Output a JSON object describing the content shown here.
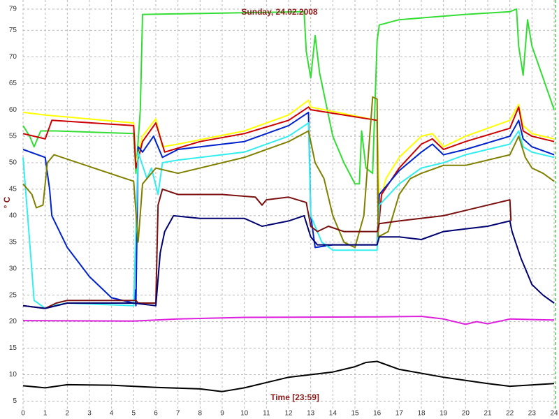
{
  "chart_data": {
    "type": "line",
    "title": "Sunday, 24.02.2008",
    "x_label": "Time [23:59]",
    "y_label": "° C",
    "xlim": [
      0,
      24
    ],
    "ylim": [
      3.6,
      79
    ],
    "xticks": [
      0,
      1,
      2,
      3,
      4,
      5,
      6,
      7,
      8,
      9,
      10,
      11,
      12,
      13,
      14,
      15,
      16,
      17,
      18,
      19,
      20,
      21,
      22,
      23,
      24
    ],
    "yticks": [
      5,
      10,
      15,
      20,
      25,
      30,
      35,
      40,
      45,
      50,
      55,
      60,
      65,
      70,
      75,
      79
    ],
    "grid": true,
    "series": [
      {
        "color": "#33dd33",
        "x": [
          0,
          0.3,
          0.5,
          0.8,
          1.5,
          5.0,
          5.1,
          5.3,
          5.4,
          5.5,
          12.7,
          12.8,
          13.0,
          13.2,
          13.4,
          14,
          14.5,
          15.0,
          15.2,
          15.3,
          15.5,
          15.8,
          16.0,
          16.1,
          17,
          20,
          22,
          22.3,
          22.4,
          22.6,
          22.8,
          23.0,
          23.5,
          24
        ],
        "values": [
          57,
          55,
          53,
          56,
          56,
          55.5,
          48,
          60,
          78,
          78,
          78.5,
          71,
          66,
          74,
          67,
          55,
          50,
          46,
          46,
          56,
          49,
          48,
          73,
          76,
          77,
          78,
          78.5,
          79,
          72,
          66.5,
          77,
          72,
          66,
          60
        ]
      },
      {
        "color": "#ffff00",
        "x": [
          0,
          1,
          5,
          5.1,
          5.4,
          6.0,
          6.3,
          7,
          10,
          12,
          12.9,
          13.0,
          16,
          16.1,
          16.4,
          17,
          18,
          18.5,
          19,
          20,
          22,
          22.4,
          22.6,
          23,
          24
        ],
        "values": [
          59.5,
          59,
          57.5,
          50,
          55,
          58.3,
          53,
          53.5,
          56,
          59,
          61.8,
          60.5,
          58,
          42,
          47,
          51,
          55,
          55.5,
          53,
          55,
          58,
          61,
          57,
          55.5,
          54.5
        ]
      },
      {
        "color": "#cc0000",
        "x": [
          0,
          1,
          1.3,
          5,
          5.1,
          5.4,
          6.0,
          6.4,
          8,
          10,
          12,
          12.9,
          13.0,
          16.0,
          16.05,
          16.2,
          17,
          18,
          18.5,
          19,
          20,
          22,
          22.4,
          22.6,
          23,
          24
        ],
        "values": [
          55.5,
          54.5,
          58,
          57,
          49,
          54,
          57.5,
          52,
          54,
          55.5,
          58,
          60.5,
          60,
          58,
          37,
          44,
          49,
          53.5,
          54.5,
          52.5,
          54,
          56.5,
          60.5,
          56,
          55,
          54
        ]
      },
      {
        "color": "#0022cc",
        "x": [
          0,
          1,
          1.2,
          1.3,
          2,
          3,
          4,
          5,
          5.05,
          5.1,
          5.2,
          5.4,
          5.9,
          6.3,
          7,
          10,
          12,
          12.9,
          13.0,
          13.2,
          14,
          16,
          16.1,
          16.5,
          17,
          18,
          18.5,
          19,
          20,
          22,
          22.4,
          22.6,
          23,
          24
        ],
        "values": [
          52.5,
          51,
          45,
          40,
          34,
          28.5,
          24.5,
          23.5,
          26,
          23,
          53,
          52,
          55,
          51,
          52.5,
          54,
          57,
          59.5,
          40,
          34,
          34.5,
          34.5,
          44,
          46,
          48.5,
          52,
          53.5,
          51.5,
          52.5,
          55,
          58,
          54.5,
          53,
          51.5
        ]
      },
      {
        "color": "#33eeee",
        "x": [
          0,
          0.3,
          0.5,
          1,
          1.3,
          2,
          5,
          5.2,
          5.6,
          5.8,
          6.1,
          6.3,
          7,
          10,
          12,
          12.9,
          13.0,
          13.5,
          14,
          16,
          16.1,
          17,
          18,
          19,
          20,
          22,
          22.4,
          22.6,
          23,
          24
        ],
        "values": [
          51,
          35,
          24,
          22.5,
          23,
          23.5,
          23,
          52,
          47,
          49,
          44,
          50,
          50.5,
          52,
          55,
          57.5,
          40,
          35,
          33.5,
          33.5,
          42,
          46,
          49,
          50,
          51.5,
          53.5,
          56,
          53,
          52,
          51
        ]
      },
      {
        "color": "#808000",
        "x": [
          0,
          0.4,
          0.6,
          0.9,
          1.1,
          1.4,
          5,
          5.2,
          5.4,
          6,
          7,
          10,
          12,
          12.9,
          13.2,
          13.6,
          14,
          14.5,
          15,
          15.4,
          15.8,
          16.0,
          16.05,
          16.5,
          17,
          17.5,
          18,
          19,
          20,
          22,
          22.4,
          22.7,
          23,
          23.5,
          24
        ],
        "values": [
          46,
          44,
          41.5,
          42,
          50,
          51.5,
          46.5,
          35,
          46,
          49,
          48,
          51,
          54,
          56,
          50,
          47,
          40,
          35,
          34,
          40,
          62.4,
          62,
          36,
          37,
          44,
          47,
          48,
          49.5,
          49.5,
          51.5,
          55,
          51,
          49,
          48,
          46.5
        ]
      },
      {
        "color": "#7a1010",
        "x": [
          0,
          1,
          1.5,
          2,
          5,
          5.1,
          5.2,
          6.0,
          6.1,
          6.3,
          7,
          9,
          10.5,
          10.8,
          11,
          12,
          12.8,
          13,
          13.3,
          13.8,
          14.5,
          16,
          16.1,
          17,
          19,
          20,
          21,
          22,
          22.05
        ],
        "values": [
          23,
          22.5,
          23.5,
          24,
          24,
          24,
          23.5,
          23.5,
          42,
          45,
          44,
          44,
          43.5,
          42,
          43,
          43.5,
          42.5,
          38,
          37,
          38,
          37,
          37,
          38.5,
          39,
          40,
          41,
          42,
          43,
          39
        ]
      },
      {
        "color": "#000070",
        "x": [
          0,
          1,
          2,
          5,
          6.0,
          6.2,
          6.4,
          6.8,
          8,
          10,
          10.8,
          12,
          12.7,
          13.0,
          13.3,
          14,
          16,
          16.1,
          17,
          18,
          19,
          20,
          21,
          22,
          22.1,
          22.5,
          23,
          23.5,
          24
        ],
        "values": [
          23,
          22.5,
          23.5,
          23.5,
          23,
          33,
          37,
          40,
          39.5,
          39.5,
          38,
          39,
          40,
          36,
          34.5,
          34.5,
          34.5,
          36,
          36,
          35.5,
          37,
          37.5,
          38,
          39,
          37,
          32,
          27,
          25,
          23.5
        ]
      },
      {
        "color": "#dd22dd",
        "x": [
          0,
          5,
          6,
          7,
          10,
          16,
          18,
          19,
          20,
          20.5,
          21,
          22,
          24
        ],
        "values": [
          20.2,
          20.1,
          20.3,
          20.5,
          20.8,
          20.9,
          21,
          20.5,
          19.5,
          20,
          19.6,
          20.5,
          20.3
        ]
      },
      {
        "color": "#000000",
        "x": [
          0,
          1,
          2,
          4,
          6,
          8,
          9,
          10,
          12,
          14,
          15,
          15.5,
          16,
          17,
          19,
          21,
          22,
          24
        ],
        "values": [
          7.9,
          7.5,
          8.1,
          8,
          7.6,
          7.3,
          6.8,
          7.5,
          9.5,
          10.5,
          11.5,
          12.3,
          12.5,
          11,
          9.5,
          8.3,
          7.8,
          8.3
        ]
      }
    ]
  }
}
